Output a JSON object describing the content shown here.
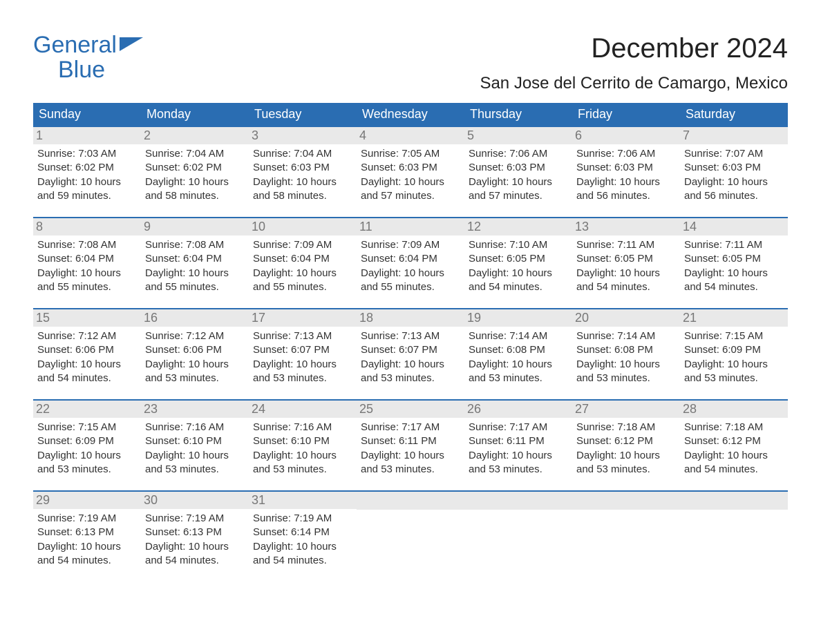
{
  "brand": {
    "line1": "General",
    "line2": "Blue",
    "accent": "#2a6db2"
  },
  "title": "December 2024",
  "location": "San Jose del Cerrito de Camargo, Mexico",
  "weekdays": [
    "Sunday",
    "Monday",
    "Tuesday",
    "Wednesday",
    "Thursday",
    "Friday",
    "Saturday"
  ],
  "colors": {
    "header_bg": "#2a6db2",
    "header_text": "#ffffff",
    "daynum_bg": "#e9e9e9",
    "daynum_text": "#777777",
    "body_text": "#333333",
    "rule": "#2a6db2"
  },
  "weeks": [
    [
      {
        "n": "1",
        "sunrise": "Sunrise: 7:03 AM",
        "sunset": "Sunset: 6:02 PM",
        "d1": "Daylight: 10 hours",
        "d2": "and 59 minutes."
      },
      {
        "n": "2",
        "sunrise": "Sunrise: 7:04 AM",
        "sunset": "Sunset: 6:02 PM",
        "d1": "Daylight: 10 hours",
        "d2": "and 58 minutes."
      },
      {
        "n": "3",
        "sunrise": "Sunrise: 7:04 AM",
        "sunset": "Sunset: 6:03 PM",
        "d1": "Daylight: 10 hours",
        "d2": "and 58 minutes."
      },
      {
        "n": "4",
        "sunrise": "Sunrise: 7:05 AM",
        "sunset": "Sunset: 6:03 PM",
        "d1": "Daylight: 10 hours",
        "d2": "and 57 minutes."
      },
      {
        "n": "5",
        "sunrise": "Sunrise: 7:06 AM",
        "sunset": "Sunset: 6:03 PM",
        "d1": "Daylight: 10 hours",
        "d2": "and 57 minutes."
      },
      {
        "n": "6",
        "sunrise": "Sunrise: 7:06 AM",
        "sunset": "Sunset: 6:03 PM",
        "d1": "Daylight: 10 hours",
        "d2": "and 56 minutes."
      },
      {
        "n": "7",
        "sunrise": "Sunrise: 7:07 AM",
        "sunset": "Sunset: 6:03 PM",
        "d1": "Daylight: 10 hours",
        "d2": "and 56 minutes."
      }
    ],
    [
      {
        "n": "8",
        "sunrise": "Sunrise: 7:08 AM",
        "sunset": "Sunset: 6:04 PM",
        "d1": "Daylight: 10 hours",
        "d2": "and 55 minutes."
      },
      {
        "n": "9",
        "sunrise": "Sunrise: 7:08 AM",
        "sunset": "Sunset: 6:04 PM",
        "d1": "Daylight: 10 hours",
        "d2": "and 55 minutes."
      },
      {
        "n": "10",
        "sunrise": "Sunrise: 7:09 AM",
        "sunset": "Sunset: 6:04 PM",
        "d1": "Daylight: 10 hours",
        "d2": "and 55 minutes."
      },
      {
        "n": "11",
        "sunrise": "Sunrise: 7:09 AM",
        "sunset": "Sunset: 6:04 PM",
        "d1": "Daylight: 10 hours",
        "d2": "and 55 minutes."
      },
      {
        "n": "12",
        "sunrise": "Sunrise: 7:10 AM",
        "sunset": "Sunset: 6:05 PM",
        "d1": "Daylight: 10 hours",
        "d2": "and 54 minutes."
      },
      {
        "n": "13",
        "sunrise": "Sunrise: 7:11 AM",
        "sunset": "Sunset: 6:05 PM",
        "d1": "Daylight: 10 hours",
        "d2": "and 54 minutes."
      },
      {
        "n": "14",
        "sunrise": "Sunrise: 7:11 AM",
        "sunset": "Sunset: 6:05 PM",
        "d1": "Daylight: 10 hours",
        "d2": "and 54 minutes."
      }
    ],
    [
      {
        "n": "15",
        "sunrise": "Sunrise: 7:12 AM",
        "sunset": "Sunset: 6:06 PM",
        "d1": "Daylight: 10 hours",
        "d2": "and 54 minutes."
      },
      {
        "n": "16",
        "sunrise": "Sunrise: 7:12 AM",
        "sunset": "Sunset: 6:06 PM",
        "d1": "Daylight: 10 hours",
        "d2": "and 53 minutes."
      },
      {
        "n": "17",
        "sunrise": "Sunrise: 7:13 AM",
        "sunset": "Sunset: 6:07 PM",
        "d1": "Daylight: 10 hours",
        "d2": "and 53 minutes."
      },
      {
        "n": "18",
        "sunrise": "Sunrise: 7:13 AM",
        "sunset": "Sunset: 6:07 PM",
        "d1": "Daylight: 10 hours",
        "d2": "and 53 minutes."
      },
      {
        "n": "19",
        "sunrise": "Sunrise: 7:14 AM",
        "sunset": "Sunset: 6:08 PM",
        "d1": "Daylight: 10 hours",
        "d2": "and 53 minutes."
      },
      {
        "n": "20",
        "sunrise": "Sunrise: 7:14 AM",
        "sunset": "Sunset: 6:08 PM",
        "d1": "Daylight: 10 hours",
        "d2": "and 53 minutes."
      },
      {
        "n": "21",
        "sunrise": "Sunrise: 7:15 AM",
        "sunset": "Sunset: 6:09 PM",
        "d1": "Daylight: 10 hours",
        "d2": "and 53 minutes."
      }
    ],
    [
      {
        "n": "22",
        "sunrise": "Sunrise: 7:15 AM",
        "sunset": "Sunset: 6:09 PM",
        "d1": "Daylight: 10 hours",
        "d2": "and 53 minutes."
      },
      {
        "n": "23",
        "sunrise": "Sunrise: 7:16 AM",
        "sunset": "Sunset: 6:10 PM",
        "d1": "Daylight: 10 hours",
        "d2": "and 53 minutes."
      },
      {
        "n": "24",
        "sunrise": "Sunrise: 7:16 AM",
        "sunset": "Sunset: 6:10 PM",
        "d1": "Daylight: 10 hours",
        "d2": "and 53 minutes."
      },
      {
        "n": "25",
        "sunrise": "Sunrise: 7:17 AM",
        "sunset": "Sunset: 6:11 PM",
        "d1": "Daylight: 10 hours",
        "d2": "and 53 minutes."
      },
      {
        "n": "26",
        "sunrise": "Sunrise: 7:17 AM",
        "sunset": "Sunset: 6:11 PM",
        "d1": "Daylight: 10 hours",
        "d2": "and 53 minutes."
      },
      {
        "n": "27",
        "sunrise": "Sunrise: 7:18 AM",
        "sunset": "Sunset: 6:12 PM",
        "d1": "Daylight: 10 hours",
        "d2": "and 53 minutes."
      },
      {
        "n": "28",
        "sunrise": "Sunrise: 7:18 AM",
        "sunset": "Sunset: 6:12 PM",
        "d1": "Daylight: 10 hours",
        "d2": "and 54 minutes."
      }
    ],
    [
      {
        "n": "29",
        "sunrise": "Sunrise: 7:19 AM",
        "sunset": "Sunset: 6:13 PM",
        "d1": "Daylight: 10 hours",
        "d2": "and 54 minutes."
      },
      {
        "n": "30",
        "sunrise": "Sunrise: 7:19 AM",
        "sunset": "Sunset: 6:13 PM",
        "d1": "Daylight: 10 hours",
        "d2": "and 54 minutes."
      },
      {
        "n": "31",
        "sunrise": "Sunrise: 7:19 AM",
        "sunset": "Sunset: 6:14 PM",
        "d1": "Daylight: 10 hours",
        "d2": "and 54 minutes."
      },
      null,
      null,
      null,
      null
    ]
  ]
}
